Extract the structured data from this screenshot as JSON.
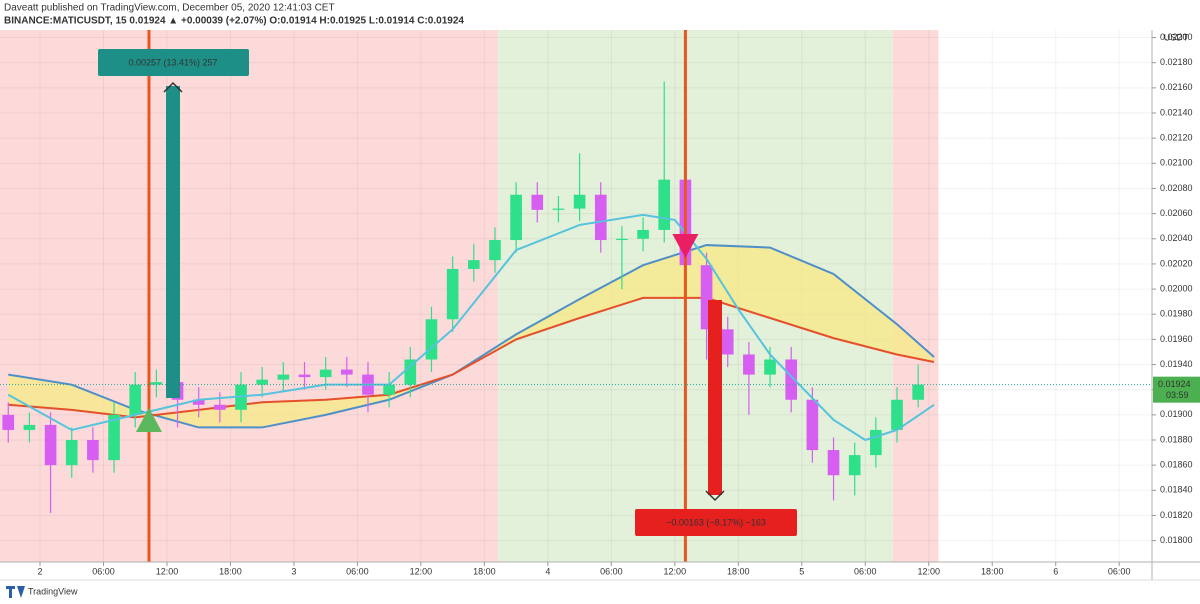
{
  "chart_data": {
    "type": "candlestick",
    "publisher_line": "Daveatt published on TradingView.com, December 05, 2020 12:41:03 CET",
    "symbol_line": "BINANCE:MATICUSDT, 15  0.01924 ▲ +0.00039 (+2.07%) O:0.01914 H:0.01925 L:0.01914 C:0.01924",
    "axis_unit": "USDT",
    "last_price": 0.01924,
    "last_price_label": "0.01924",
    "countdown": "03:59",
    "brand": "TradingView",
    "up_color": "#2ee08a",
    "down_color": "#d65ef0",
    "xlim": [
      -3.78,
      105.1
    ],
    "ylim": [
      0.01783,
      0.02206
    ],
    "xticks": [
      {
        "value": 0,
        "label": "2"
      },
      {
        "value": 6,
        "label": "06:00"
      },
      {
        "value": 12,
        "label": "12:00"
      },
      {
        "value": 18,
        "label": "18:00"
      },
      {
        "value": 24,
        "label": "3"
      },
      {
        "value": 30,
        "label": "06:00"
      },
      {
        "value": 36,
        "label": "12:00"
      },
      {
        "value": 42,
        "label": "18:00"
      },
      {
        "value": 48,
        "label": "4"
      },
      {
        "value": 54,
        "label": "06:00"
      },
      {
        "value": 60,
        "label": "12:00"
      },
      {
        "value": 66,
        "label": "18:00"
      },
      {
        "value": 72,
        "label": "5"
      },
      {
        "value": 78,
        "label": "06:00"
      },
      {
        "value": 84,
        "label": "12:00"
      },
      {
        "value": 90,
        "label": "18:00"
      },
      {
        "value": 96,
        "label": "6"
      },
      {
        "value": 102,
        "label": "06:00"
      }
    ],
    "yticks": [
      {
        "value": 0.022,
        "label": "0.02200"
      },
      {
        "value": 0.0218,
        "label": "0.02180"
      },
      {
        "value": 0.0216,
        "label": "0.02160"
      },
      {
        "value": 0.0214,
        "label": "0.02140"
      },
      {
        "value": 0.0212,
        "label": "0.02120"
      },
      {
        "value": 0.021,
        "label": "0.02100"
      },
      {
        "value": 0.0208,
        "label": "0.02080"
      },
      {
        "value": 0.0206,
        "label": "0.02060"
      },
      {
        "value": 0.0204,
        "label": "0.02040"
      },
      {
        "value": 0.0202,
        "label": "0.02020"
      },
      {
        "value": 0.02,
        "label": "0.02000"
      },
      {
        "value": 0.0198,
        "label": "0.01980"
      },
      {
        "value": 0.0196,
        "label": "0.01960"
      },
      {
        "value": 0.0194,
        "label": "0.01940"
      },
      {
        "value": 0.0192,
        "label": "0.01920"
      },
      {
        "value": 0.019,
        "label": "0.01900"
      },
      {
        "value": 0.0188,
        "label": "0.01880"
      },
      {
        "value": 0.0186,
        "label": "0.01860"
      },
      {
        "value": 0.0184,
        "label": "0.01840"
      },
      {
        "value": 0.0182,
        "label": "0.01820"
      },
      {
        "value": 0.018,
        "label": "0.01800"
      }
    ],
    "zones": [
      {
        "start": -3.78,
        "end": 43.3,
        "color": "#fddada"
      },
      {
        "start": 43.3,
        "end": 80.6,
        "color": "#e3f0da"
      },
      {
        "start": 80.6,
        "end": 84.9,
        "color": "#fddada"
      }
    ],
    "signals": [
      {
        "x": 10.3,
        "color": "#e8561f"
      },
      {
        "x": 61,
        "color": "#e8561f"
      }
    ],
    "candles": {
      "x": [
        -3,
        -1,
        1,
        3,
        5,
        7,
        9,
        11,
        13,
        15,
        17,
        19,
        21,
        23,
        25,
        27,
        29,
        31,
        33,
        35,
        37,
        39,
        41,
        43,
        45,
        47,
        49,
        51,
        53,
        55,
        57,
        59,
        61,
        63,
        65,
        67,
        69,
        71,
        73,
        75,
        77,
        79,
        81,
        83
      ],
      "open": [
        0.019,
        0.01888,
        0.01892,
        0.0186,
        0.0188,
        0.01864,
        0.019,
        0.01924,
        0.01926,
        0.01912,
        0.01908,
        0.01904,
        0.01924,
        0.01928,
        0.01932,
        0.0193,
        0.01936,
        0.01932,
        0.01916,
        0.01924,
        0.01944,
        0.01976,
        0.02016,
        0.02023,
        0.02039,
        0.02075,
        0.02063,
        0.02064,
        0.02075,
        0.02039,
        0.0204,
        0.02047,
        0.02087,
        0.02019,
        0.01968,
        0.01948,
        0.01932,
        0.01944,
        0.01912,
        0.01872,
        0.01852,
        0.01868,
        0.01888,
        0.01912
      ],
      "high": [
        0.0191,
        0.01902,
        0.01902,
        0.0189,
        0.0189,
        0.0191,
        0.01934,
        0.01936,
        0.01936,
        0.01922,
        0.01918,
        0.01934,
        0.01938,
        0.01942,
        0.01942,
        0.01946,
        0.01946,
        0.01942,
        0.01934,
        0.01954,
        0.01986,
        0.02026,
        0.02036,
        0.02049,
        0.02085,
        0.02085,
        0.02074,
        0.02108,
        0.02085,
        0.0205,
        0.02057,
        0.02165,
        0.02097,
        0.02029,
        0.01978,
        0.01958,
        0.01954,
        0.01954,
        0.01922,
        0.01882,
        0.01878,
        0.01898,
        0.01922,
        0.0194
      ],
      "low": [
        0.01878,
        0.01878,
        0.01822,
        0.0185,
        0.01854,
        0.01854,
        0.0189,
        0.01914,
        0.0189,
        0.01898,
        0.01894,
        0.01894,
        0.01914,
        0.01918,
        0.0192,
        0.0192,
        0.01922,
        0.01902,
        0.01906,
        0.01914,
        0.01934,
        0.01966,
        0.02006,
        0.02013,
        0.02029,
        0.02053,
        0.02053,
        0.02054,
        0.02029,
        0.02,
        0.0203,
        0.02037,
        0.02009,
        0.01944,
        0.01938,
        0.019,
        0.01922,
        0.01902,
        0.01862,
        0.01832,
        0.01836,
        0.01858,
        0.01878,
        0.01906
      ],
      "close": [
        0.01888,
        0.01892,
        0.0186,
        0.0188,
        0.01864,
        0.019,
        0.01924,
        0.01926,
        0.01912,
        0.01908,
        0.01904,
        0.01924,
        0.01928,
        0.01932,
        0.0193,
        0.01936,
        0.01932,
        0.01916,
        0.01924,
        0.01944,
        0.01976,
        0.02016,
        0.02023,
        0.02039,
        0.02075,
        0.02063,
        0.02064,
        0.02075,
        0.02039,
        0.0204,
        0.02047,
        0.02087,
        0.02019,
        0.01968,
        0.01948,
        0.01932,
        0.01944,
        0.01912,
        0.01872,
        0.01852,
        0.01868,
        0.01888,
        0.01912,
        0.01924
      ]
    },
    "fast_line": {
      "color": "#56c3dd",
      "x": [
        -3,
        3,
        9,
        15,
        21,
        27,
        33,
        39,
        45,
        51,
        57,
        60,
        63,
        66,
        69,
        75,
        78,
        81,
        84.5
      ],
      "values": [
        0.01916,
        0.01888,
        0.019,
        0.01912,
        0.01916,
        0.01924,
        0.01924,
        0.01968,
        0.02031,
        0.02051,
        0.02059,
        0.02055,
        0.02024,
        0.01984,
        0.01948,
        0.01896,
        0.0188,
        0.01888,
        0.01908
      ]
    },
    "band": {
      "fill": "#f6e889",
      "x": [
        -3,
        3,
        9,
        15,
        21,
        27,
        33,
        39,
        45,
        51,
        57,
        63,
        69,
        75,
        81,
        84.5
      ],
      "upper": {
        "color": "#4f8fc8",
        "values": [
          0.01932,
          0.01924,
          0.01904,
          0.0189,
          0.0189,
          0.019,
          0.01912,
          0.01932,
          0.01964,
          0.01992,
          0.02019,
          0.02035,
          0.02033,
          0.02012,
          0.01972,
          0.01946
        ]
      },
      "lower": {
        "color": "#e4502a",
        "values": [
          0.01908,
          0.01904,
          0.01898,
          0.01904,
          0.0191,
          0.01912,
          0.01916,
          0.01932,
          0.0196,
          0.01977,
          0.01993,
          0.01993,
          0.01977,
          0.01961,
          0.01948,
          0.01942
        ]
      }
    },
    "measures": [
      {
        "label": "0.00257 (13.41%) 257",
        "color": "#1e8f86"
      },
      {
        "label": "−0.00163 (−8.17%) −163",
        "color": "#e5201f"
      }
    ]
  }
}
